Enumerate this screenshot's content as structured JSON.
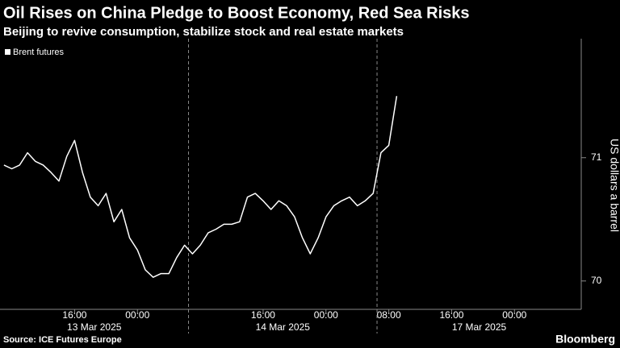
{
  "chart_data": {
    "type": "line",
    "title": "Oil Rises on China Pledge to Boost Economy, Red Sea Risks",
    "subtitle": "Beijing to revive consumption, stabilize stock and real estate markets",
    "y_axis_label": "US dollars a barrel",
    "source": "Source: ICE Futures Europe",
    "logo": "Bloomberg",
    "categories": [
      "2025-03-13 07:00",
      "2025-03-13 08:00",
      "2025-03-13 09:00",
      "2025-03-13 10:00",
      "2025-03-13 11:00",
      "2025-03-13 12:00",
      "2025-03-13 13:00",
      "2025-03-13 14:00",
      "2025-03-13 15:00",
      "2025-03-13 16:00",
      "2025-03-13 17:00",
      "2025-03-13 18:00",
      "2025-03-13 19:00",
      "2025-03-13 20:00",
      "2025-03-13 21:00",
      "2025-03-13 22:00",
      "2025-03-13 23:00",
      "2025-03-14 00:00",
      "2025-03-14 01:00",
      "2025-03-14 02:00",
      "2025-03-14 03:00",
      "2025-03-14 04:00",
      "2025-03-14 05:00",
      "2025-03-14 06:00",
      "2025-03-14 07:00",
      "2025-03-14 08:00",
      "2025-03-14 09:00",
      "2025-03-14 10:00",
      "2025-03-14 11:00",
      "2025-03-14 12:00",
      "2025-03-14 13:00",
      "2025-03-14 14:00",
      "2025-03-14 15:00",
      "2025-03-14 16:00",
      "2025-03-14 17:00",
      "2025-03-14 18:00",
      "2025-03-14 19:00",
      "2025-03-14 20:00",
      "2025-03-14 21:00",
      "2025-03-14 22:00",
      "2025-03-14 23:00",
      "2025-03-15 00:00",
      "2025-03-15 01:00",
      "2025-03-15 02:00",
      "2025-03-15 03:00",
      "2025-03-15 04:00",
      "2025-03-15 05:00",
      "2025-03-15 06:00",
      "2025-03-17 07:00",
      "2025-03-17 08:00",
      "2025-03-17 09:00",
      "2025-03-17 10:00",
      "2025-03-17 11:00",
      "2025-03-17 12:00",
      "2025-03-17 13:00",
      "2025-03-17 14:00",
      "2025-03-17 15:00",
      "2025-03-17 16:00",
      "2025-03-17 17:00",
      "2025-03-17 18:00",
      "2025-03-17 19:00",
      "2025-03-17 20:00",
      "2025-03-17 21:00",
      "2025-03-17 22:00",
      "2025-03-17 23:00",
      "2025-03-18 00:00",
      "2025-03-18 01:00",
      "2025-03-18 02:00",
      "2025-03-18 03:00",
      "2025-03-18 04:00",
      "2025-03-18 05:00",
      "2025-03-18 06:00",
      "2025-03-18 07:00",
      "2025-03-18 08:00"
    ],
    "series": [
      {
        "name": "Brent futures",
        "color": "#ffffff",
        "values": [
          70.94,
          70.91,
          70.94,
          71.04,
          70.97,
          70.94,
          70.88,
          70.81,
          71.01,
          71.14,
          70.88,
          70.68,
          70.61,
          70.71,
          70.48,
          70.58,
          70.35,
          70.25,
          70.09,
          70.03,
          70.06,
          70.06,
          70.19,
          70.29,
          70.22,
          70.29,
          70.39,
          70.42,
          70.46,
          70.46,
          70.48,
          70.68,
          70.71,
          70.65,
          70.58,
          70.65,
          70.61,
          70.52,
          70.35,
          70.22,
          70.35,
          70.52,
          70.61,
          70.65,
          70.68,
          70.61,
          70.65,
          70.71,
          71.04,
          71.1,
          71.5,
          null,
          null,
          null,
          null,
          null,
          null,
          null,
          null,
          null,
          null,
          null,
          null,
          null,
          null,
          null,
          null,
          null,
          null,
          null,
          null,
          null,
          null,
          null
        ]
      }
    ],
    "xticks": [
      {
        "value": "2025-03-13 16:00",
        "label": "16:00"
      },
      {
        "value": "2025-03-14 00:00",
        "label": "00:00"
      },
      {
        "value": "2025-03-14 16:00",
        "label": "16:00"
      },
      {
        "value": "2025-03-15 00:00",
        "label": "00:00"
      },
      {
        "value": "2025-03-17 08:00",
        "label": "08:00"
      },
      {
        "value": "2025-03-17 16:00",
        "label": "16:00"
      },
      {
        "value": "2025-03-18 00:00",
        "label": "00:00"
      }
    ],
    "sessions": [
      {
        "start": "2025-03-13 07:00",
        "label": "13 Mar 2025"
      },
      {
        "start": "2025-03-14 07:00",
        "label": "14 Mar 2025"
      },
      {
        "start": "2025-03-17 07:00",
        "label": "17 Mar 2025"
      }
    ],
    "ylim": [
      69.77,
      71.9
    ],
    "yticks": [
      70,
      71
    ],
    "grid": false
  }
}
